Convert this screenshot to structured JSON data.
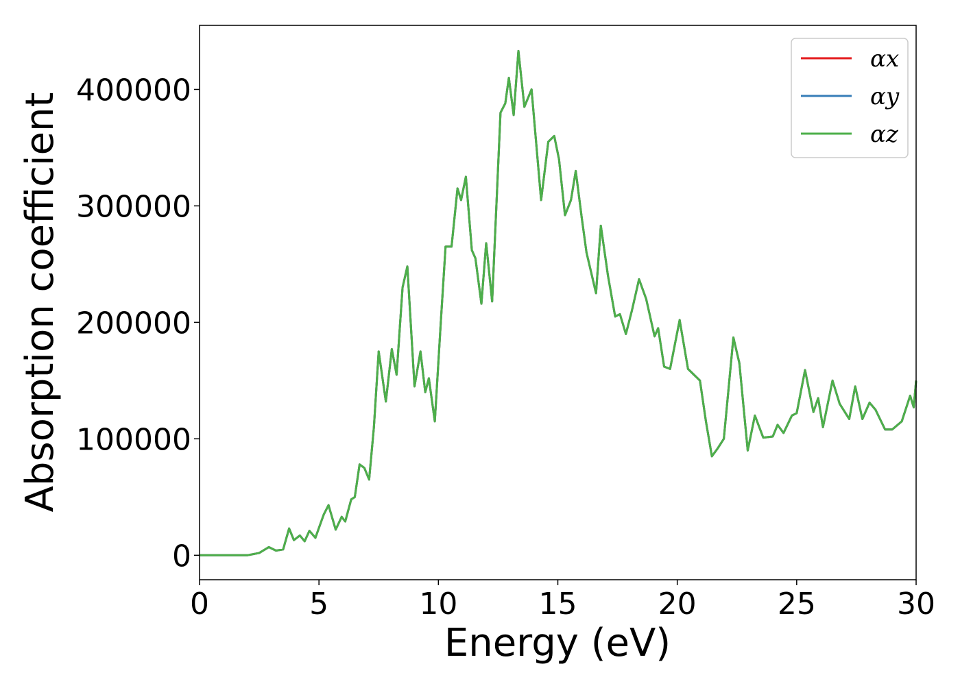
{
  "chart_data": {
    "type": "line",
    "xlabel": "Energy (eV)",
    "ylabel": "Absorption coefficient",
    "x": [
      0,
      2,
      2.5,
      2.9,
      3.2,
      3.5,
      3.75,
      3.95,
      4.2,
      4.4,
      4.6,
      4.85,
      5.2,
      5.4,
      5.7,
      5.95,
      6.1,
      6.35,
      6.5,
      6.7,
      6.9,
      7.1,
      7.3,
      7.5,
      7.8,
      8.05,
      8.25,
      8.5,
      8.7,
      9.0,
      9.25,
      9.45,
      9.6,
      9.85,
      10.1,
      10.3,
      10.55,
      10.8,
      10.95,
      11.15,
      11.4,
      11.55,
      11.8,
      12.0,
      12.25,
      12.6,
      12.8,
      12.95,
      13.15,
      13.35,
      13.6,
      13.9,
      14.3,
      14.6,
      14.85,
      15.05,
      15.3,
      15.55,
      15.75,
      16.0,
      16.2,
      16.6,
      16.8,
      17.1,
      17.4,
      17.6,
      17.85,
      18.1,
      18.4,
      18.7,
      19.05,
      19.2,
      19.45,
      19.7,
      20.1,
      20.45,
      20.7,
      20.95,
      21.2,
      21.45,
      21.7,
      21.95,
      22.35,
      22.6,
      22.95,
      23.25,
      23.6,
      24.0,
      24.2,
      24.45,
      24.8,
      25.0,
      25.35,
      25.7,
      25.9,
      26.1,
      26.5,
      26.8,
      27.2,
      27.45,
      27.75,
      28.05,
      28.3,
      28.7,
      29.0,
      29.4,
      29.75,
      29.9,
      30
    ],
    "series": [
      {
        "name": "αx",
        "color": "#e41a1c",
        "values": [
          0,
          0,
          2000,
          7000,
          4000,
          5000,
          23000,
          13000,
          17000,
          12000,
          21000,
          15000,
          35000,
          43000,
          22000,
          33000,
          29000,
          48000,
          50000,
          78000,
          75000,
          65000,
          110000,
          175000,
          132000,
          177000,
          155000,
          230000,
          248000,
          145000,
          175000,
          140000,
          152000,
          115000,
          200000,
          265000,
          265000,
          315000,
          305000,
          325000,
          262000,
          255000,
          216000,
          268000,
          218000,
          380000,
          388000,
          410000,
          378000,
          433000,
          385000,
          400000,
          305000,
          355000,
          360000,
          340000,
          292000,
          305000,
          330000,
          290000,
          260000,
          225000,
          283000,
          240000,
          205000,
          207000,
          190000,
          210000,
          237000,
          220000,
          188000,
          195000,
          162000,
          160000,
          202000,
          160000,
          155000,
          150000,
          115000,
          85000,
          92000,
          100000,
          187000,
          165000,
          90000,
          120000,
          101000,
          102000,
          112000,
          105000,
          120000,
          122000,
          159000,
          123000,
          135000,
          110000,
          150000,
          130000,
          117000,
          145000,
          117000,
          131000,
          125000,
          108000,
          108000,
          115000,
          137000,
          127000,
          150000
        ]
      },
      {
        "name": "αy",
        "color": "#377eb8",
        "values": [
          0,
          0,
          2000,
          7000,
          4000,
          5000,
          23000,
          13000,
          17000,
          12000,
          21000,
          15000,
          35000,
          43000,
          22000,
          33000,
          29000,
          48000,
          50000,
          78000,
          75000,
          65000,
          110000,
          175000,
          132000,
          177000,
          155000,
          230000,
          248000,
          145000,
          175000,
          140000,
          152000,
          115000,
          200000,
          265000,
          265000,
          315000,
          305000,
          325000,
          262000,
          255000,
          216000,
          268000,
          218000,
          380000,
          388000,
          410000,
          378000,
          433000,
          385000,
          400000,
          305000,
          355000,
          360000,
          340000,
          292000,
          305000,
          330000,
          290000,
          260000,
          225000,
          283000,
          240000,
          205000,
          207000,
          190000,
          210000,
          237000,
          220000,
          188000,
          195000,
          162000,
          160000,
          202000,
          160000,
          155000,
          150000,
          115000,
          85000,
          92000,
          100000,
          187000,
          165000,
          90000,
          120000,
          101000,
          102000,
          112000,
          105000,
          120000,
          122000,
          159000,
          123000,
          135000,
          110000,
          150000,
          130000,
          117000,
          145000,
          117000,
          131000,
          125000,
          108000,
          108000,
          115000,
          137000,
          127000,
          150000
        ]
      },
      {
        "name": "αz",
        "color": "#4daf4a",
        "values": [
          0,
          0,
          2000,
          7000,
          4000,
          5000,
          23000,
          13000,
          17000,
          12000,
          21000,
          15000,
          35000,
          43000,
          22000,
          33000,
          29000,
          48000,
          50000,
          78000,
          75000,
          65000,
          110000,
          175000,
          132000,
          177000,
          155000,
          230000,
          248000,
          145000,
          175000,
          140000,
          152000,
          115000,
          200000,
          265000,
          265000,
          315000,
          305000,
          325000,
          262000,
          255000,
          216000,
          268000,
          218000,
          380000,
          388000,
          410000,
          378000,
          433000,
          385000,
          400000,
          305000,
          355000,
          360000,
          340000,
          292000,
          305000,
          330000,
          290000,
          260000,
          225000,
          283000,
          240000,
          205000,
          207000,
          190000,
          210000,
          237000,
          220000,
          188000,
          195000,
          162000,
          160000,
          202000,
          160000,
          155000,
          150000,
          115000,
          85000,
          92000,
          100000,
          187000,
          165000,
          90000,
          120000,
          101000,
          102000,
          112000,
          105000,
          120000,
          122000,
          159000,
          123000,
          135000,
          110000,
          150000,
          130000,
          117000,
          145000,
          117000,
          131000,
          125000,
          108000,
          108000,
          115000,
          137000,
          127000,
          150000
        ]
      }
    ],
    "xlim": [
      0,
      30
    ],
    "xticks": [
      0,
      5,
      10,
      15,
      20,
      25,
      30
    ],
    "ylim": [
      -21000,
      455000
    ],
    "yticks": [
      0,
      100000,
      200000,
      300000,
      400000
    ],
    "legend": "upper right",
    "grid": false
  }
}
